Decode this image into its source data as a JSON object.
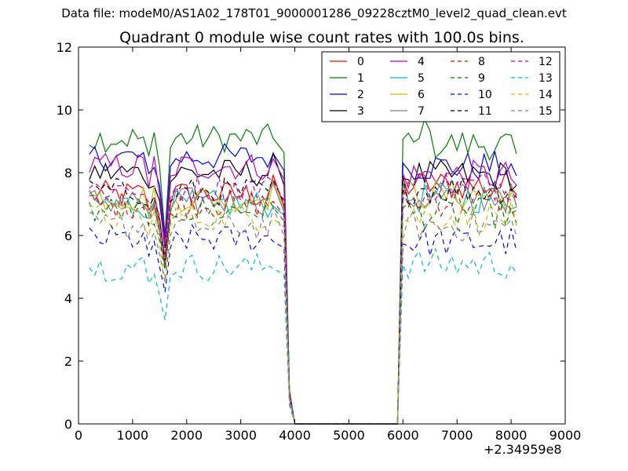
{
  "supertitle": "Data file: modeM0/AS1A02_178T01_9000001286_09228cztM0_level2_quad_clean.evt",
  "chart_data": {
    "type": "line",
    "title": "Quadrant 0 module wise count rates with 100.0s bins.",
    "xlabel": "",
    "ylabel": "",
    "xlim": [
      0,
      9000
    ],
    "ylim": [
      0,
      12
    ],
    "x_offset_text": "+2.34959e8",
    "xticks": [
      0,
      1000,
      2000,
      3000,
      4000,
      5000,
      6000,
      7000,
      8000,
      9000
    ],
    "yticks": [
      0,
      2,
      4,
      6,
      8,
      10,
      12
    ],
    "grid": false,
    "legend_position": "top-right",
    "legend_columns": 4,
    "segments": [
      {
        "start": 200,
        "bins": 35
      },
      {
        "start": 3800,
        "bins": 21
      },
      {
        "start": 5900,
        "bins": 23
      }
    ],
    "series": [
      {
        "name": "0",
        "color": "#ff0000",
        "style": "solid",
        "level1": 7.3,
        "level2": 7.6,
        "dip": 5.3
      },
      {
        "name": "1",
        "color": "#008000",
        "style": "solid",
        "level1": 9.1,
        "level2": 8.9,
        "dip": 6.0
      },
      {
        "name": "2",
        "color": "#0000ff",
        "style": "solid",
        "level1": 8.5,
        "level2": 8.2,
        "dip": 5.9
      },
      {
        "name": "3",
        "color": "#000000",
        "style": "solid",
        "level1": 8.0,
        "level2": 7.9,
        "dip": 5.6
      },
      {
        "name": "4",
        "color": "#bf00bf",
        "style": "solid",
        "level1": 8.2,
        "level2": 7.9,
        "dip": 5.7
      },
      {
        "name": "5",
        "color": "#00bfbf",
        "style": "solid",
        "level1": 7.0,
        "level2": 7.2,
        "dip": 5.0
      },
      {
        "name": "6",
        "color": "#bfbf00",
        "style": "solid",
        "level1": 7.2,
        "level2": 7.3,
        "dip": 5.1
      },
      {
        "name": "7",
        "color": "#808080",
        "style": "solid",
        "level1": 7.1,
        "level2": 7.2,
        "dip": 5.1
      },
      {
        "name": "8",
        "color": "#ff0000",
        "style": "dashed",
        "level1": 7.0,
        "level2": 7.1,
        "dip": 5.0
      },
      {
        "name": "9",
        "color": "#008000",
        "style": "dashed",
        "level1": 6.8,
        "level2": 6.7,
        "dip": 4.9
      },
      {
        "name": "10",
        "color": "#0000ff",
        "style": "dashed",
        "level1": 5.9,
        "level2": 5.8,
        "dip": 4.2
      },
      {
        "name": "11",
        "color": "#000000",
        "style": "dashed",
        "level1": 7.4,
        "level2": 7.5,
        "dip": 5.2
      },
      {
        "name": "12",
        "color": "#bf00bf",
        "style": "dashed",
        "level1": 7.5,
        "level2": 7.6,
        "dip": 5.3
      },
      {
        "name": "13",
        "color": "#00bfbf",
        "style": "dashed",
        "level1": 5.0,
        "level2": 5.1,
        "dip": 3.3
      },
      {
        "name": "14",
        "color": "#bfbf00",
        "style": "dashed",
        "level1": 6.6,
        "level2": 6.6,
        "dip": 4.6
      },
      {
        "name": "15",
        "color": "#808080",
        "style": "dashed",
        "level1": 6.3,
        "level2": 6.3,
        "dip": 4.5
      }
    ]
  }
}
